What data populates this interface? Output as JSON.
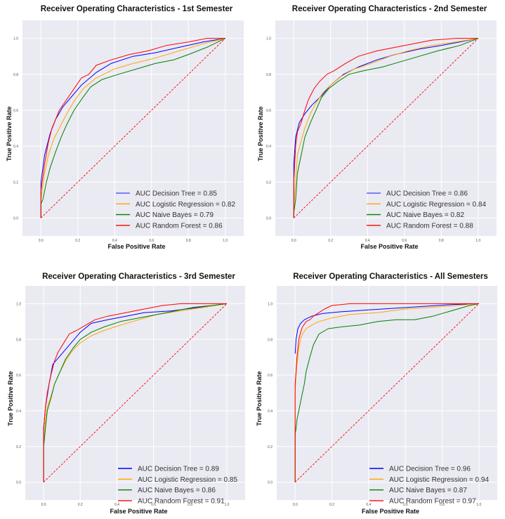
{
  "chart_data": [
    {
      "type": "line",
      "title": "Receiver Operating Characteristics - 1st Semester",
      "xlabel": "False Positive Rate",
      "ylabel": "True Positive Rate",
      "xlim": [
        -0.1,
        1.1
      ],
      "ylim": [
        -0.1,
        1.1
      ],
      "xticks": [
        "0.0",
        "0.2",
        "0.4",
        "0.6",
        "0.8",
        "1.0"
      ],
      "yticks": [
        "0.0",
        "0.2",
        "0.4",
        "0.6",
        "0.8",
        "1.0"
      ],
      "grid": true,
      "legend": "lower-right",
      "diagonal": {
        "name": "chance",
        "color": "#ff0000",
        "style": "dashed"
      },
      "series": [
        {
          "name": "AUC Decision Tree = 0.85",
          "color": "#0000ff",
          "x": [
            0,
            0.0,
            0.02,
            0.05,
            0.08,
            0.12,
            0.17,
            0.22,
            0.3,
            0.38,
            0.5,
            0.62,
            0.75,
            0.88,
            1.0
          ],
          "y": [
            0,
            0.2,
            0.35,
            0.47,
            0.55,
            0.62,
            0.68,
            0.74,
            0.81,
            0.86,
            0.9,
            0.92,
            0.95,
            0.98,
            1.0
          ]
        },
        {
          "name": "AUC Logistic Regression = 0.82",
          "color": "#ffa500",
          "x": [
            0,
            0.0,
            0.02,
            0.04,
            0.07,
            0.1,
            0.14,
            0.18,
            0.23,
            0.3,
            0.4,
            0.5,
            0.62,
            0.75,
            0.88,
            1.0
          ],
          "y": [
            0,
            0.1,
            0.25,
            0.35,
            0.44,
            0.5,
            0.58,
            0.65,
            0.72,
            0.78,
            0.83,
            0.86,
            0.89,
            0.93,
            0.97,
            1.0
          ]
        },
        {
          "name": "AUC Naive Bayes = 0.79",
          "color": "#008000",
          "x": [
            0,
            0.0,
            0.01,
            0.03,
            0.05,
            0.08,
            0.11,
            0.14,
            0.18,
            0.22,
            0.27,
            0.33,
            0.42,
            0.52,
            0.62,
            0.72,
            0.8,
            0.9,
            1.0
          ],
          "y": [
            0,
            0.08,
            0.1,
            0.2,
            0.28,
            0.37,
            0.45,
            0.52,
            0.6,
            0.66,
            0.73,
            0.77,
            0.8,
            0.83,
            0.86,
            0.88,
            0.91,
            0.95,
            1.0
          ]
        },
        {
          "name": "AUC Random Forest = 0.86",
          "color": "#ff0000",
          "x": [
            0,
            0.0,
            0.02,
            0.04,
            0.06,
            0.08,
            0.1,
            0.14,
            0.18,
            0.22,
            0.26,
            0.3,
            0.38,
            0.48,
            0.58,
            0.68,
            0.8,
            0.9,
            1.0
          ],
          "y": [
            0,
            0.15,
            0.3,
            0.42,
            0.5,
            0.55,
            0.6,
            0.66,
            0.72,
            0.78,
            0.8,
            0.85,
            0.88,
            0.91,
            0.93,
            0.96,
            0.98,
            1.0,
            1.0
          ]
        }
      ]
    },
    {
      "type": "line",
      "title": "Receiver Operating Characteristics - 2nd Semester",
      "xlabel": "False Positive Rate",
      "ylabel": "True Positive Rate",
      "xlim": [
        -0.1,
        1.1
      ],
      "ylim": [
        -0.1,
        1.1
      ],
      "xticks": [
        "0.0",
        "0.2",
        "0.4",
        "0.6",
        "0.8",
        "1.0"
      ],
      "yticks": [
        "0.0",
        "0.2",
        "0.4",
        "0.6",
        "0.8",
        "1.0"
      ],
      "grid": true,
      "legend": "lower-right",
      "diagonal": {
        "name": "chance",
        "color": "#ff0000",
        "style": "dashed"
      },
      "series": [
        {
          "name": "AUC Decision Tree = 0.86",
          "color": "#0000ff",
          "x": [
            0,
            0.0,
            0.01,
            0.03,
            0.06,
            0.1,
            0.15,
            0.2,
            0.27,
            0.35,
            0.45,
            0.55,
            0.68,
            0.8,
            0.9,
            1.0
          ],
          "y": [
            0,
            0.3,
            0.45,
            0.53,
            0.58,
            0.63,
            0.68,
            0.74,
            0.8,
            0.84,
            0.88,
            0.91,
            0.94,
            0.96,
            0.98,
            1.0
          ]
        },
        {
          "name": "AUC Logistic Regression = 0.84",
          "color": "#ffa500",
          "x": [
            0,
            0.0,
            0.01,
            0.02,
            0.04,
            0.06,
            0.09,
            0.12,
            0.16,
            0.2,
            0.26,
            0.33,
            0.42,
            0.52,
            0.62,
            0.75,
            0.88,
            1.0
          ],
          "y": [
            0,
            0.05,
            0.2,
            0.35,
            0.43,
            0.5,
            0.58,
            0.64,
            0.7,
            0.74,
            0.79,
            0.83,
            0.86,
            0.9,
            0.93,
            0.96,
            0.98,
            1.0
          ]
        },
        {
          "name": "AUC Naive Bayes = 0.82",
          "color": "#008000",
          "x": [
            0,
            0.0,
            0.01,
            0.02,
            0.04,
            0.06,
            0.09,
            0.12,
            0.15,
            0.19,
            0.24,
            0.3,
            0.38,
            0.48,
            0.58,
            0.68,
            0.78,
            0.9,
            1.0
          ],
          "y": [
            0,
            0.03,
            0.1,
            0.25,
            0.35,
            0.45,
            0.53,
            0.6,
            0.67,
            0.72,
            0.76,
            0.8,
            0.82,
            0.84,
            0.87,
            0.9,
            0.93,
            0.96,
            1.0
          ]
        },
        {
          "name": "AUC Random Forest = 0.88",
          "color": "#ff0000",
          "x": [
            0,
            0.0,
            0.01,
            0.02,
            0.04,
            0.06,
            0.08,
            0.11,
            0.14,
            0.18,
            0.22,
            0.28,
            0.35,
            0.45,
            0.55,
            0.65,
            0.75,
            0.88,
            1.0
          ],
          "y": [
            0,
            0.2,
            0.4,
            0.48,
            0.53,
            0.6,
            0.66,
            0.72,
            0.76,
            0.8,
            0.82,
            0.86,
            0.9,
            0.93,
            0.95,
            0.97,
            0.99,
            1.0,
            1.0
          ]
        }
      ]
    },
    {
      "type": "line",
      "title": "Receiver Operating Characteristics - 3rd Semester",
      "xlabel": "False Positive Rate",
      "ylabel": "True Positive Rate",
      "xlim": [
        -0.1,
        1.1
      ],
      "ylim": [
        -0.1,
        1.1
      ],
      "xticks": [
        "0.0",
        "0.2",
        "0.4",
        "0.6",
        "0.8",
        "1.0"
      ],
      "yticks": [
        "0.0",
        "0.2",
        "0.4",
        "0.6",
        "0.8",
        "1.0"
      ],
      "grid": true,
      "legend": "lower-right",
      "diagonal": {
        "name": "chance",
        "color": "#ff0000",
        "style": "dashed"
      },
      "series": [
        {
          "name": "AUC Decision Tree = 0.89",
          "color": "#0000ff",
          "x": [
            0,
            0.0,
            0.01,
            0.03,
            0.05,
            0.1,
            0.15,
            0.2,
            0.26,
            0.35,
            0.45,
            0.55,
            0.7,
            0.85,
            1.0
          ],
          "y": [
            0,
            0.3,
            0.42,
            0.55,
            0.66,
            0.72,
            0.78,
            0.84,
            0.89,
            0.91,
            0.93,
            0.95,
            0.96,
            0.98,
            1.0
          ]
        },
        {
          "name": "AUC Logistic Regression = 0.85",
          "color": "#ffa500",
          "x": [
            0,
            0.0,
            0.01,
            0.02,
            0.04,
            0.06,
            0.09,
            0.12,
            0.16,
            0.2,
            0.26,
            0.33,
            0.42,
            0.52,
            0.62,
            0.75,
            0.88,
            1.0
          ],
          "y": [
            0,
            0.2,
            0.35,
            0.42,
            0.48,
            0.55,
            0.62,
            0.68,
            0.74,
            0.78,
            0.82,
            0.85,
            0.88,
            0.91,
            0.94,
            0.96,
            0.98,
            1.0
          ]
        },
        {
          "name": "AUC Naive Bayes = 0.86",
          "color": "#008000",
          "x": [
            0,
            0.0,
            0.01,
            0.02,
            0.04,
            0.06,
            0.09,
            0.12,
            0.16,
            0.2,
            0.26,
            0.33,
            0.42,
            0.52,
            0.62,
            0.72,
            0.82,
            0.92,
            1.0
          ],
          "y": [
            0,
            0.2,
            0.3,
            0.4,
            0.47,
            0.55,
            0.62,
            0.69,
            0.75,
            0.8,
            0.84,
            0.87,
            0.9,
            0.92,
            0.94,
            0.96,
            0.98,
            0.99,
            1.0
          ]
        },
        {
          "name": "AUC Random Forest = 0.91",
          "color": "#ff0000",
          "x": [
            0,
            0.0,
            0.01,
            0.02,
            0.04,
            0.06,
            0.08,
            0.11,
            0.14,
            0.18,
            0.23,
            0.28,
            0.35,
            0.45,
            0.55,
            0.65,
            0.75,
            0.88,
            1.0
          ],
          "y": [
            0,
            0.3,
            0.42,
            0.5,
            0.6,
            0.68,
            0.73,
            0.78,
            0.83,
            0.85,
            0.88,
            0.91,
            0.93,
            0.95,
            0.97,
            0.99,
            1.0,
            1.0,
            1.0
          ]
        }
      ]
    },
    {
      "type": "line",
      "title": "Receiver Operating Characteristics - All Semesters",
      "xlabel": "False Positive Rate",
      "ylabel": "True Positive Rate",
      "xlim": [
        -0.1,
        1.1
      ],
      "ylim": [
        -0.1,
        1.1
      ],
      "xticks": [
        "0.0",
        "0.2",
        "0.4",
        "0.6",
        "0.8",
        "1.0"
      ],
      "yticks": [
        "0.0",
        "0.2",
        "0.4",
        "0.6",
        "0.8",
        "1.0"
      ],
      "grid": true,
      "legend": "lower-right",
      "diagonal": {
        "name": "chance",
        "color": "#ff0000",
        "style": "dashed"
      },
      "series": [
        {
          "name": "AUC Decision Tree = 0.96",
          "color": "#0000ff",
          "x": [
            0.0,
            0.005,
            0.015,
            0.03,
            0.05,
            0.09,
            0.15,
            0.25,
            0.4,
            0.55,
            0.7,
            0.85,
            1.0
          ],
          "y": [
            0.72,
            0.8,
            0.86,
            0.89,
            0.91,
            0.93,
            0.945,
            0.955,
            0.965,
            0.975,
            0.985,
            0.995,
            1.0
          ]
        },
        {
          "name": "AUC Logistic Regression = 0.94",
          "color": "#ffa500",
          "x": [
            0,
            0.0,
            0.005,
            0.01,
            0.015,
            0.02,
            0.03,
            0.04,
            0.06,
            0.09,
            0.13,
            0.2,
            0.3,
            0.45,
            0.6,
            0.75,
            0.88,
            1.0
          ],
          "y": [
            0,
            0.5,
            0.6,
            0.66,
            0.7,
            0.75,
            0.8,
            0.83,
            0.86,
            0.88,
            0.9,
            0.92,
            0.94,
            0.95,
            0.97,
            0.98,
            0.99,
            1.0
          ]
        },
        {
          "name": "AUC Naive Bayes = 0.87",
          "color": "#008000",
          "x": [
            0,
            0.0,
            0.005,
            0.01,
            0.02,
            0.03,
            0.04,
            0.05,
            0.06,
            0.08,
            0.1,
            0.13,
            0.18,
            0.25,
            0.35,
            0.45,
            0.55,
            0.65,
            0.75,
            0.85,
            0.95,
            1.0
          ],
          "y": [
            0,
            0.27,
            0.3,
            0.35,
            0.4,
            0.45,
            0.5,
            0.55,
            0.62,
            0.7,
            0.77,
            0.83,
            0.86,
            0.87,
            0.88,
            0.9,
            0.91,
            0.91,
            0.93,
            0.96,
            0.99,
            1.0
          ]
        },
        {
          "name": "AUC Random Forest = 0.97",
          "color": "#ff0000",
          "x": [
            0,
            0.0,
            0.005,
            0.01,
            0.015,
            0.02,
            0.03,
            0.04,
            0.06,
            0.08,
            0.1,
            0.13,
            0.16,
            0.2,
            0.3,
            0.5,
            0.7,
            1.0
          ],
          "y": [
            0,
            0.55,
            0.62,
            0.7,
            0.75,
            0.8,
            0.84,
            0.87,
            0.9,
            0.91,
            0.93,
            0.95,
            0.97,
            0.99,
            1.0,
            1.0,
            1.0,
            1.0
          ]
        }
      ]
    }
  ]
}
